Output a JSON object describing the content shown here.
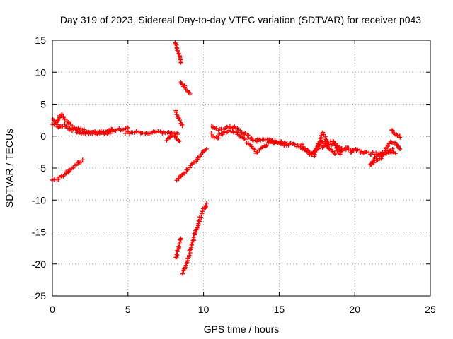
{
  "chart_data": {
    "type": "scatter",
    "title": "Day 319 of 2023, Sidereal Day-to-day VTEC variation (SDTVAR) for receiver p043",
    "xlabel": "GPS time / hours",
    "ylabel": "SDTVAR / TECUs",
    "xlim": [
      0,
      25
    ],
    "ylim": [
      -25,
      15
    ],
    "xticks": [
      0,
      5,
      10,
      15,
      20,
      25
    ],
    "yticks": [
      -25,
      -20,
      -15,
      -10,
      -5,
      0,
      5,
      10,
      15
    ],
    "grid": true,
    "marker": "plus",
    "series": [
      {
        "name": "SDTVAR",
        "color": "#ff0000",
        "segments": [
          [
            [
              0.0,
              2.5
            ],
            [
              0.3,
              2.2
            ],
            [
              0.6,
              3.5
            ],
            [
              0.9,
              2.5
            ],
            [
              1.2,
              1.7
            ],
            [
              1.5,
              1.2
            ],
            [
              1.8,
              1.0
            ],
            [
              2.1,
              0.9
            ],
            [
              2.5,
              0.6
            ],
            [
              3.0,
              0.6
            ],
            [
              3.5,
              0.8
            ],
            [
              4.0,
              1.0
            ],
            [
              4.5,
              1.1
            ],
            [
              5.0,
              1.3
            ]
          ],
          [
            [
              0.0,
              2.0
            ],
            [
              0.4,
              1.5
            ],
            [
              0.8,
              1.8
            ],
            [
              1.2,
              1.0
            ],
            [
              1.6,
              0.8
            ],
            [
              2.0,
              0.5
            ],
            [
              2.5,
              0.4
            ],
            [
              3.0,
              0.5
            ],
            [
              3.5,
              0.5
            ],
            [
              4.0,
              0.7
            ]
          ],
          [
            [
              4.8,
              0.6
            ],
            [
              5.3,
              0.5
            ],
            [
              5.8,
              0.6
            ],
            [
              6.3,
              0.4
            ],
            [
              6.8,
              0.6
            ],
            [
              7.3,
              0.5
            ],
            [
              7.8,
              0.5
            ],
            [
              8.3,
              0.3
            ]
          ],
          [
            [
              7.6,
              -0.6
            ],
            [
              7.9,
              0.2
            ],
            [
              8.2,
              -0.2
            ],
            [
              8.4,
              -0.8
            ]
          ],
          [
            [
              0.0,
              -6.8
            ],
            [
              0.4,
              -6.6
            ],
            [
              0.8,
              -6.0
            ],
            [
              1.2,
              -5.2
            ],
            [
              1.6,
              -4.4
            ],
            [
              2.0,
              -3.7
            ]
          ],
          [
            [
              8.1,
              14.8
            ],
            [
              8.3,
              13.2
            ],
            [
              8.5,
              11.5
            ]
          ],
          [
            [
              8.5,
              8.6
            ],
            [
              8.7,
              7.8
            ],
            [
              8.9,
              7.2
            ],
            [
              9.1,
              6.6
            ]
          ],
          [
            [
              8.2,
              3.8
            ],
            [
              8.4,
              2.6
            ],
            [
              8.6,
              1.6
            ]
          ],
          [
            [
              8.2,
              -6.8
            ],
            [
              8.6,
              -6.0
            ],
            [
              9.0,
              -5.0
            ],
            [
              9.4,
              -4.0
            ],
            [
              9.8,
              -3.0
            ],
            [
              10.2,
              -2.0
            ]
          ],
          [
            [
              8.2,
              -19.0
            ],
            [
              8.3,
              -18.0
            ],
            [
              8.4,
              -17.0
            ],
            [
              8.5,
              -16.0
            ]
          ],
          [
            [
              8.6,
              -21.5
            ],
            [
              8.8,
              -20.5
            ],
            [
              9.0,
              -19.0
            ],
            [
              9.2,
              -17.0
            ],
            [
              9.4,
              -15.5
            ],
            [
              9.6,
              -14.0
            ],
            [
              9.8,
              -12.5
            ],
            [
              10.0,
              -11.5
            ],
            [
              10.2,
              -10.5
            ]
          ],
          [
            [
              10.5,
              1.5
            ],
            [
              11.0,
              1.0
            ],
            [
              11.5,
              1.2
            ],
            [
              12.0,
              1.5
            ],
            [
              12.4,
              0.8
            ],
            [
              12.8,
              0.3
            ],
            [
              13.3,
              -0.7
            ],
            [
              13.8,
              -0.6
            ],
            [
              14.3,
              -0.4
            ],
            [
              14.8,
              -0.8
            ],
            [
              15.3,
              -1.1
            ],
            [
              15.8,
              -1.3
            ],
            [
              16.3,
              -1.6
            ],
            [
              16.8,
              -2.2
            ],
            [
              17.1,
              -2.9
            ],
            [
              17.5,
              -2.0
            ],
            [
              17.9,
              -1.5
            ],
            [
              18.3,
              -1.2
            ],
            [
              18.7,
              -1.5
            ],
            [
              19.2,
              -2.0
            ],
            [
              19.7,
              -2.0
            ],
            [
              20.2,
              -2.3
            ],
            [
              20.7,
              -2.6
            ],
            [
              21.2,
              -2.7
            ],
            [
              21.7,
              -2.8
            ],
            [
              22.2,
              -2.4
            ],
            [
              22.7,
              -2.7
            ]
          ],
          [
            [
              10.5,
              0.3
            ],
            [
              10.9,
              -0.4
            ],
            [
              11.3,
              0.6
            ],
            [
              11.8,
              0.8
            ],
            [
              12.2,
              0.5
            ],
            [
              12.6,
              -0.2
            ],
            [
              13.0,
              -1.2
            ],
            [
              13.5,
              -2.5
            ],
            [
              14.0,
              -1.5
            ],
            [
              14.5,
              -0.9
            ],
            [
              15.0,
              -1.2
            ],
            [
              15.5,
              -1.5
            ]
          ],
          [
            [
              16.5,
              -1.2
            ],
            [
              16.9,
              -2.8
            ],
            [
              17.3,
              -3.0
            ],
            [
              17.6,
              -1.2
            ],
            [
              17.9,
              0.6
            ],
            [
              18.2,
              -1.2
            ],
            [
              18.6,
              -0.8
            ],
            [
              19.0,
              -2.8
            ],
            [
              19.4,
              -1.8
            ],
            [
              19.8,
              -2.5
            ]
          ],
          [
            [
              17.5,
              -2.0
            ],
            [
              17.8,
              -0.6
            ],
            [
              18.1,
              -1.5
            ],
            [
              18.4,
              -2.2
            ],
            [
              18.7,
              -2.6
            ],
            [
              19.0,
              -1.7
            ]
          ],
          [
            [
              21.2,
              -3.8
            ],
            [
              21.6,
              -3.0
            ],
            [
              22.0,
              -2.2
            ],
            [
              22.4,
              -0.8
            ],
            [
              22.7,
              -1.0
            ],
            [
              23.0,
              -2.0
            ]
          ],
          [
            [
              21.0,
              -4.7
            ],
            [
              21.4,
              -3.8
            ],
            [
              21.8,
              -3.2
            ],
            [
              22.2,
              -2.4
            ],
            [
              22.5,
              -2.0
            ]
          ],
          [
            [
              22.4,
              0.9
            ],
            [
              22.6,
              0.5
            ],
            [
              22.8,
              0.1
            ],
            [
              23.0,
              -0.2
            ]
          ]
        ]
      }
    ]
  }
}
